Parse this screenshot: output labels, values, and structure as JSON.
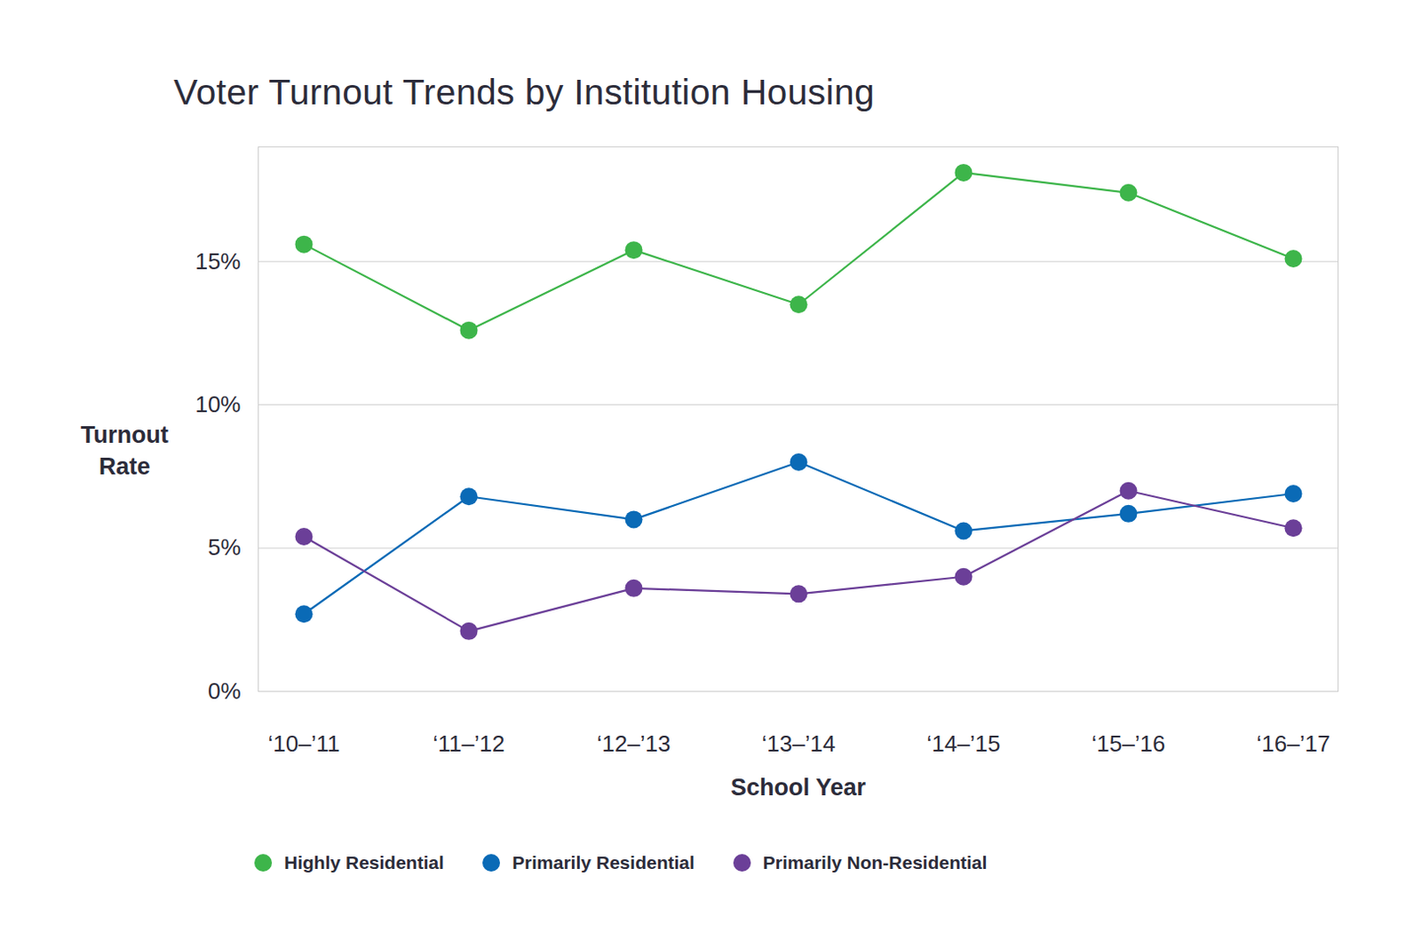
{
  "chart_data": {
    "type": "line",
    "title": "Voter Turnout Trends by Institution Housing",
    "x_label": "School Year",
    "y_label": "Turnout Rate",
    "categories": [
      "‘10–’11",
      "‘11–’12",
      "‘12–’13",
      "‘13–’14",
      "‘14–’15",
      "‘15–’16",
      "‘16–’17"
    ],
    "series": [
      {
        "name": "Highly Residential",
        "color": "#3db54a",
        "marker": "circle",
        "values": [
          15.6,
          12.6,
          15.4,
          13.5,
          18.1,
          17.4,
          15.1
        ]
      },
      {
        "name": "Primarily Residential",
        "color": "#0a6ab6",
        "marker": "circle",
        "values": [
          2.7,
          6.8,
          6.0,
          8.0,
          5.6,
          6.2,
          6.9
        ]
      },
      {
        "name": "Primarily Non-Residential",
        "color": "#6b3f98",
        "marker": "circle",
        "values": [
          5.4,
          2.1,
          3.6,
          3.4,
          4.0,
          7.0,
          5.7
        ]
      }
    ],
    "ylim": [
      0,
      19
    ],
    "yticks": [
      {
        "value": 0,
        "label": "0%"
      },
      {
        "value": 5,
        "label": "5%"
      },
      {
        "value": 10,
        "label": "10%"
      },
      {
        "value": 15,
        "label": "15%"
      }
    ],
    "grid": true,
    "legend": "bottom"
  }
}
